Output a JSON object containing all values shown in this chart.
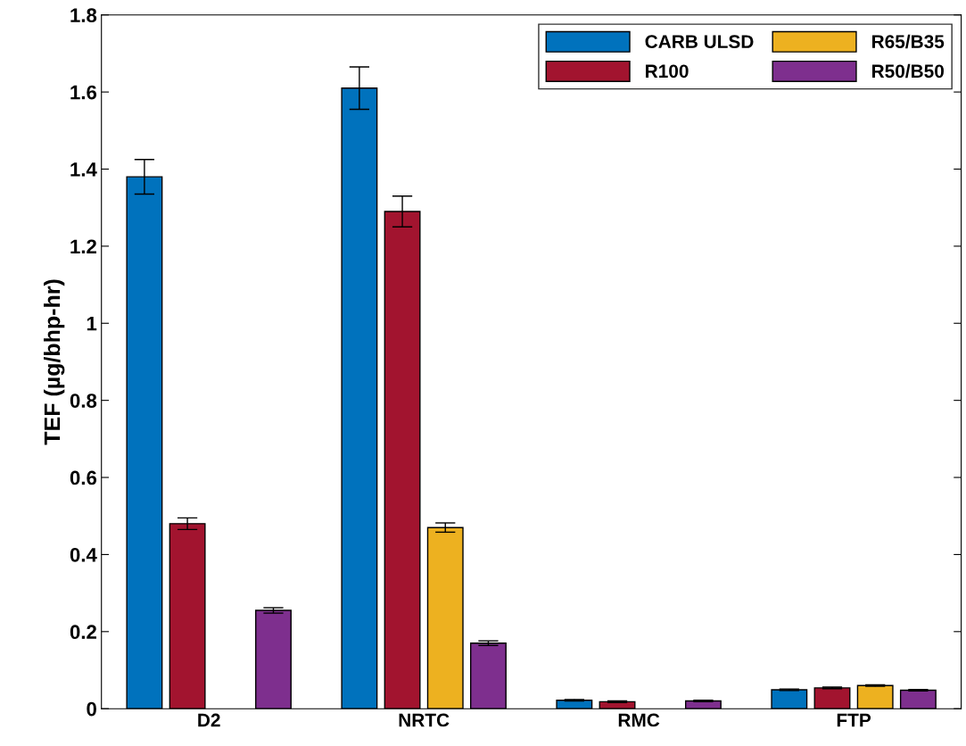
{
  "chart_data": {
    "type": "bar",
    "ylabel": "TEF (µg/bhp-hr)",
    "categories": [
      "D2",
      "NRTC",
      "RMC",
      "FTP"
    ],
    "series": [
      {
        "name": "CARB ULSD",
        "color": "#0072bd",
        "values": [
          1.38,
          1.61,
          0.022,
          0.049
        ],
        "errors": [
          0.045,
          0.055,
          0.002,
          0.002
        ]
      },
      {
        "name": "R100",
        "color": "#a2142f",
        "values": [
          0.48,
          1.29,
          0.018,
          0.054
        ],
        "errors": [
          0.015,
          0.04,
          0.002,
          0.002
        ]
      },
      {
        "name": "R65/B35",
        "color": "#edb120",
        "values": [
          null,
          0.47,
          null,
          0.06
        ],
        "errors": [
          null,
          0.012,
          null,
          0.002
        ]
      },
      {
        "name": "R50/B50",
        "color": "#7e2f8e",
        "values": [
          0.255,
          0.17,
          0.02,
          0.048
        ],
        "errors": [
          0.007,
          0.006,
          0.002,
          0.002
        ]
      }
    ],
    "ylim": [
      0,
      1.8
    ],
    "yticks": [
      0,
      0.2,
      0.4,
      0.6,
      0.8,
      1,
      1.2,
      1.4,
      1.6,
      1.8
    ],
    "legend": "top right",
    "grid": false
  }
}
